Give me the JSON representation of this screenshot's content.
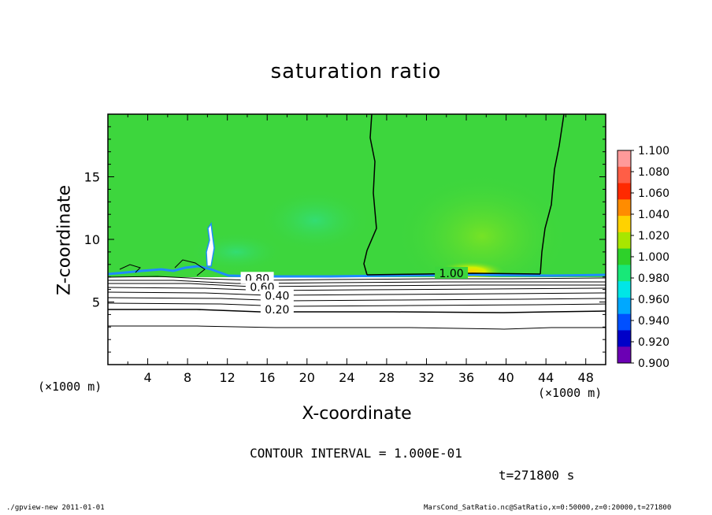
{
  "chart_data": {
    "type": "heatmap",
    "title": "saturation ratio",
    "xlabel": "X-coordinate",
    "ylabel": "Z-coordinate",
    "x_unit": "(×1000 m)",
    "xlim": [
      0,
      50
    ],
    "ylim": [
      0,
      20
    ],
    "x_ticks": [
      4,
      8,
      12,
      16,
      20,
      24,
      28,
      32,
      36,
      40,
      44,
      48
    ],
    "y_ticks": [
      5,
      10,
      15
    ],
    "colorbar": {
      "labels": [
        "1.100",
        "1.080",
        "1.060",
        "1.040",
        "1.020",
        "1.000",
        "0.980",
        "0.960",
        "0.940",
        "0.920",
        "0.900"
      ],
      "colors": [
        "#ff9a9a",
        "#ff5e46",
        "#ff2a00",
        "#ff8c00",
        "#ffd200",
        "#a8e600",
        "#2ed12a",
        "#18e878",
        "#00e6e6",
        "#00a8ff",
        "#0050ff",
        "#0000c8",
        "#6b00b4"
      ]
    },
    "contour_labels": [
      {
        "text": "1.00",
        "x": 34.5,
        "z": 7.3
      },
      {
        "text": "0.80",
        "x": 15.0,
        "z": 6.9
      },
      {
        "text": "0.60",
        "x": 15.5,
        "z": 6.2
      },
      {
        "text": "0.40",
        "x": 17.0,
        "z": 5.5
      },
      {
        "text": "0.20",
        "x": 17.0,
        "z": 4.4
      }
    ],
    "contour_interval": "CONTOUR INTERVAL = 1.000E-01",
    "time": "t=271800 s"
  },
  "footer": {
    "left": "./gpview-new   2011-01-01",
    "right": "MarsCond_SatRatio.nc@SatRatio,x=0:50000,z=0:20000,t=271800"
  },
  "colors": {
    "field_green": "#3dd63d",
    "boundary_blue": "#1e8cff"
  }
}
